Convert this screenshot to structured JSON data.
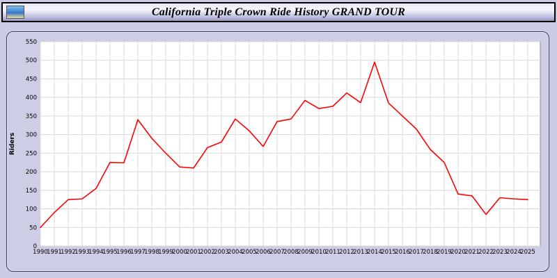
{
  "header": {
    "title": "California Triple Crown Ride History GRAND TOUR"
  },
  "chart_data": {
    "type": "line",
    "title": "California Triple Crown Ride History GRAND TOUR",
    "xlabel": "",
    "ylabel": "Riders",
    "ylim": [
      0,
      550
    ],
    "ytick_step": 50,
    "grid": true,
    "legend": "none",
    "line_color": "#ff0000",
    "plot_bg": "#ffffff",
    "grid_color": "#d8d8d8",
    "x": [
      1990,
      1991,
      1992,
      1993,
      1994,
      1995,
      1996,
      1997,
      1998,
      1999,
      2000,
      2001,
      2002,
      2003,
      2004,
      2005,
      2006,
      2007,
      2008,
      2009,
      2010,
      2011,
      2012,
      2013,
      2014,
      2015,
      2016,
      2017,
      2018,
      2019,
      2020,
      2021,
      2022,
      2023,
      2024,
      2025
    ],
    "values": [
      50,
      90,
      125,
      127,
      155,
      225,
      224,
      340,
      290,
      250,
      213,
      210,
      265,
      280,
      342,
      310,
      268,
      335,
      342,
      392,
      370,
      376,
      412,
      386,
      495,
      385,
      350,
      315,
      260,
      225,
      140,
      135,
      85,
      130,
      127,
      125
    ]
  }
}
